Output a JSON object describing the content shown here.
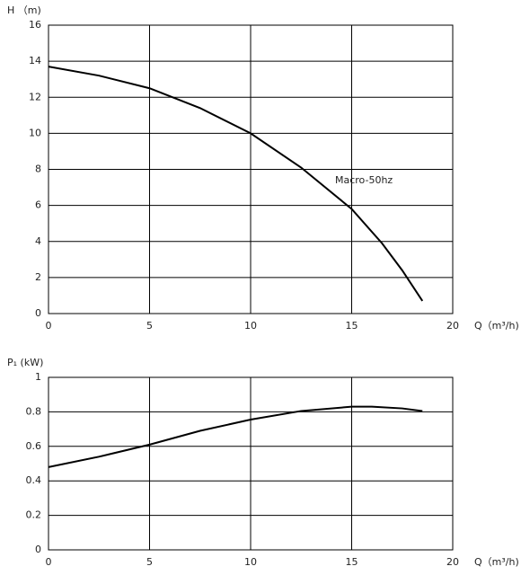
{
  "chart_data": [
    {
      "type": "line",
      "ylabel": "H （m)",
      "xlabel": "Q（m³/h)",
      "annotation": "Macro-50hz",
      "x": [
        0,
        2.5,
        5,
        7.5,
        10,
        12.5,
        15,
        16.5,
        17.5,
        18.5
      ],
      "series": [
        {
          "color": "#000000",
          "values": [
            13.7,
            13.2,
            12.5,
            11.4,
            10.0,
            8.1,
            5.8,
            3.9,
            2.4,
            0.7
          ]
        }
      ],
      "xlim": [
        0,
        20
      ],
      "xticks": [
        0,
        5,
        10,
        15,
        20
      ],
      "ylim": [
        0,
        16
      ],
      "yticks": [
        0,
        2,
        4,
        6,
        8,
        10,
        12,
        14,
        16
      ],
      "grid": true
    },
    {
      "type": "line",
      "ylabel": "P₁ (kW)",
      "xlabel": "Q（m³/h)",
      "x": [
        0,
        2.5,
        5,
        7.5,
        10,
        12.5,
        15,
        16,
        17.5,
        18.5
      ],
      "series": [
        {
          "color": "#000000",
          "values": [
            0.48,
            0.54,
            0.61,
            0.69,
            0.755,
            0.805,
            0.83,
            0.83,
            0.82,
            0.805
          ]
        }
      ],
      "xlim": [
        0,
        20
      ],
      "xticks": [
        0,
        5,
        10,
        15,
        20
      ],
      "ylim": [
        0,
        1
      ],
      "yticks": [
        0,
        0.2,
        0.4,
        0.6,
        0.8,
        1
      ],
      "grid": true
    }
  ]
}
